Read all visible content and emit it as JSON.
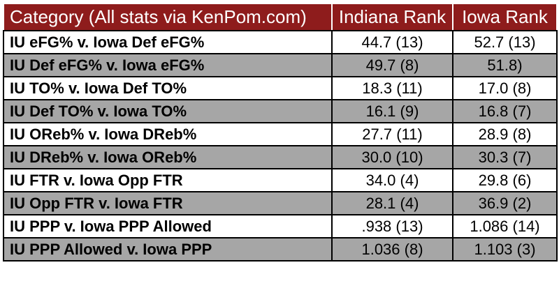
{
  "header": {
    "category": "Category (All stats via KenPom.com)",
    "indiana": "Indiana Rank",
    "iowa": "Iowa Rank"
  },
  "colors": {
    "header_bg": "#8e1c1c",
    "shaded_row": "#a6a6a6",
    "plain_row": "#ffffff"
  },
  "rows": [
    {
      "category": "IU eFG% v. Iowa Def eFG%",
      "indiana": "44.7 (13)",
      "iowa": "52.7 (13)"
    },
    {
      "category": "IU Def eFG% v. Iowa eFG%",
      "indiana": "49.7 (8)",
      "iowa": "51.8)"
    },
    {
      "category": "IU TO% v. Iowa Def TO%",
      "indiana": "18.3 (11)",
      "iowa": "17.0 (8)"
    },
    {
      "category": "IU Def TO% v. Iowa TO%",
      "indiana": "16.1 (9)",
      "iowa": "16.8 (7)"
    },
    {
      "category": "IU OReb% v. Iowa DReb%",
      "indiana": "27.7 (11)",
      "iowa": "28.9 (8)"
    },
    {
      "category": "IU DReb% v. Iowa OReb%",
      "indiana": "30.0 (10)",
      "iowa": "30.3 (7)"
    },
    {
      "category": "IU FTR v. Iowa Opp FTR",
      "indiana": "34.0 (4)",
      "iowa": "29.8 (6)"
    },
    {
      "category": "IU Opp FTR v. Iowa FTR",
      "indiana": "28.1 (4)",
      "iowa": "36.9 (2)"
    },
    {
      "category": "IU PPP v. Iowa PPP Allowed",
      "indiana": ".938 (13)",
      "iowa": "1.086 (14)"
    },
    {
      "category": "IU PPP Allowed v. Iowa PPP",
      "indiana": "1.036 (8)",
      "iowa": "1.103 (3)"
    }
  ]
}
